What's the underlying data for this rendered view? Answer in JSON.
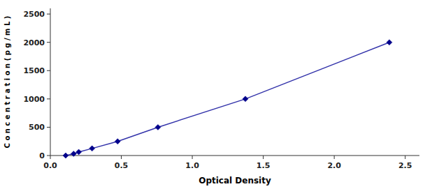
{
  "chart_data": {
    "type": "line",
    "xlabel": "Optical Density",
    "ylabel": "C o n c e n t r a t i o n ( p g / m L )",
    "x": [
      0.108,
      0.164,
      0.2,
      0.294,
      0.474,
      0.758,
      1.374,
      2.388
    ],
    "series": [
      {
        "color": "#3333aa",
        "marker": "diamond",
        "colors": [
          "#00008B",
          "#00008B",
          "#00008B",
          "#00008B",
          "#00008B",
          "#00008B",
          "#00008B",
          "#00008B"
        ],
        "values": [
          0,
          31.25,
          62.5,
          125,
          250,
          500,
          1000,
          2000
        ]
      }
    ],
    "xlim": [
      0.0,
      2.6
    ],
    "ylim": [
      0,
      2600
    ],
    "xticks": [
      {
        "value": 0,
        "label": "0.0"
      },
      0.5,
      {
        "value": 1,
        "label": "1.0"
      },
      {
        "value": 1.5,
        "label": "1.5"
      },
      {
        "value": 2,
        "label": "2.0"
      },
      2.5
    ],
    "yticks": [
      0,
      500,
      1000,
      1500,
      2000,
      2500
    ],
    "grid": false
  }
}
